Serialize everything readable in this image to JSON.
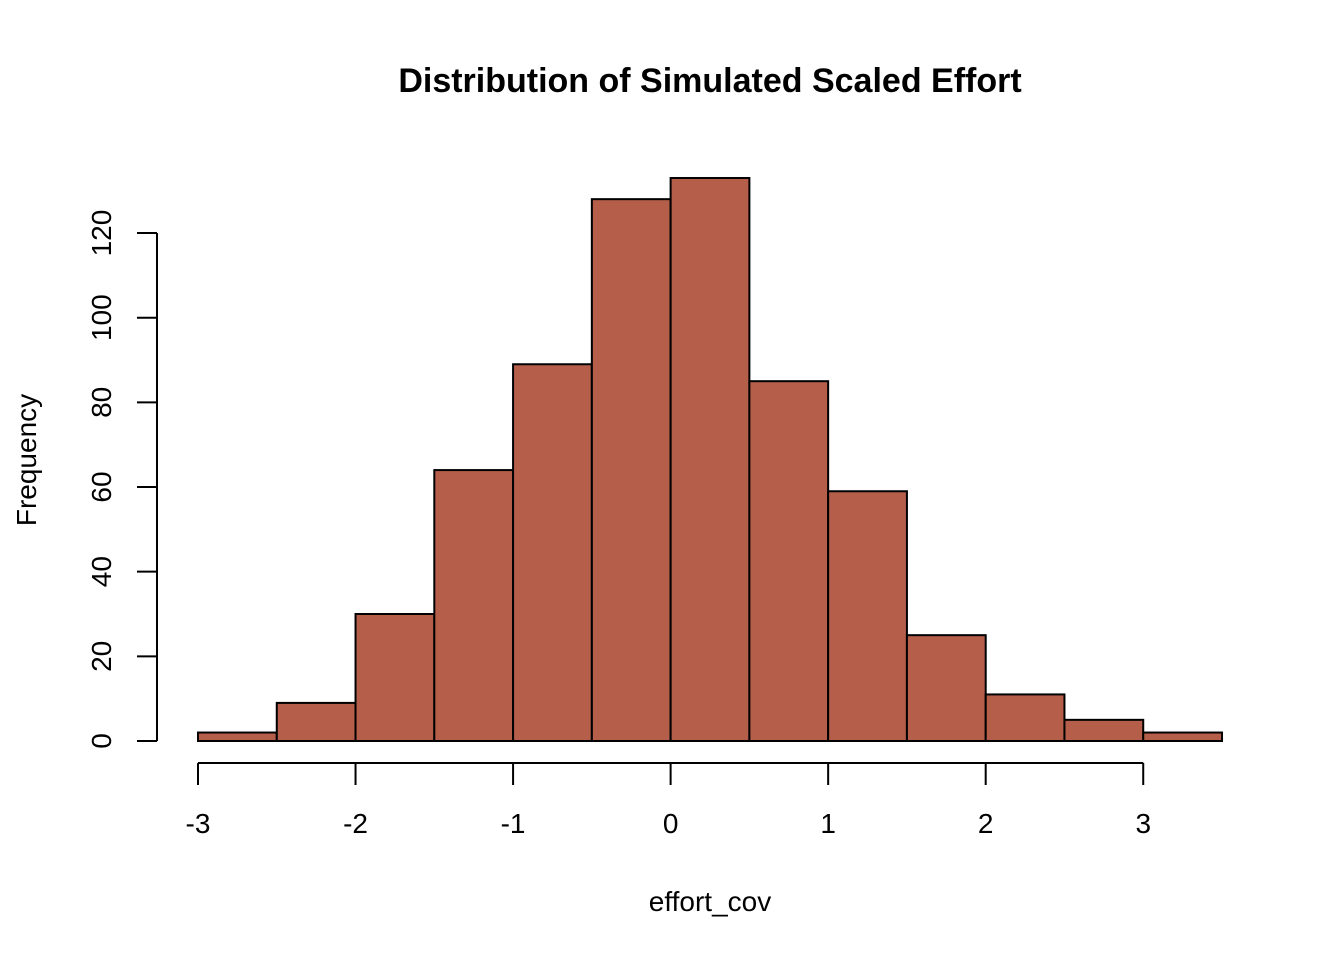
{
  "chart_data": {
    "type": "bar",
    "title": "Distribution of Simulated Scaled Effort",
    "xlabel": "effort_cov",
    "ylabel": "Frequency",
    "bar_color": "#B55F4B",
    "bin_edges": [
      -3,
      -2.5,
      -2,
      -1.5,
      -1,
      -0.5,
      0,
      0.5,
      1,
      1.5,
      2,
      2.5,
      3,
      3.5
    ],
    "values": [
      2,
      9,
      30,
      64,
      89,
      128,
      133,
      85,
      59,
      25,
      11,
      5,
      2
    ],
    "xlim": [
      -3,
      3.5
    ],
    "ylim": [
      0,
      133
    ],
    "x_ticks": [
      -3,
      -2,
      -1,
      0,
      1,
      2,
      3
    ],
    "y_ticks": [
      0,
      20,
      40,
      60,
      80,
      100,
      120
    ],
    "grid": false,
    "legend": "none"
  }
}
